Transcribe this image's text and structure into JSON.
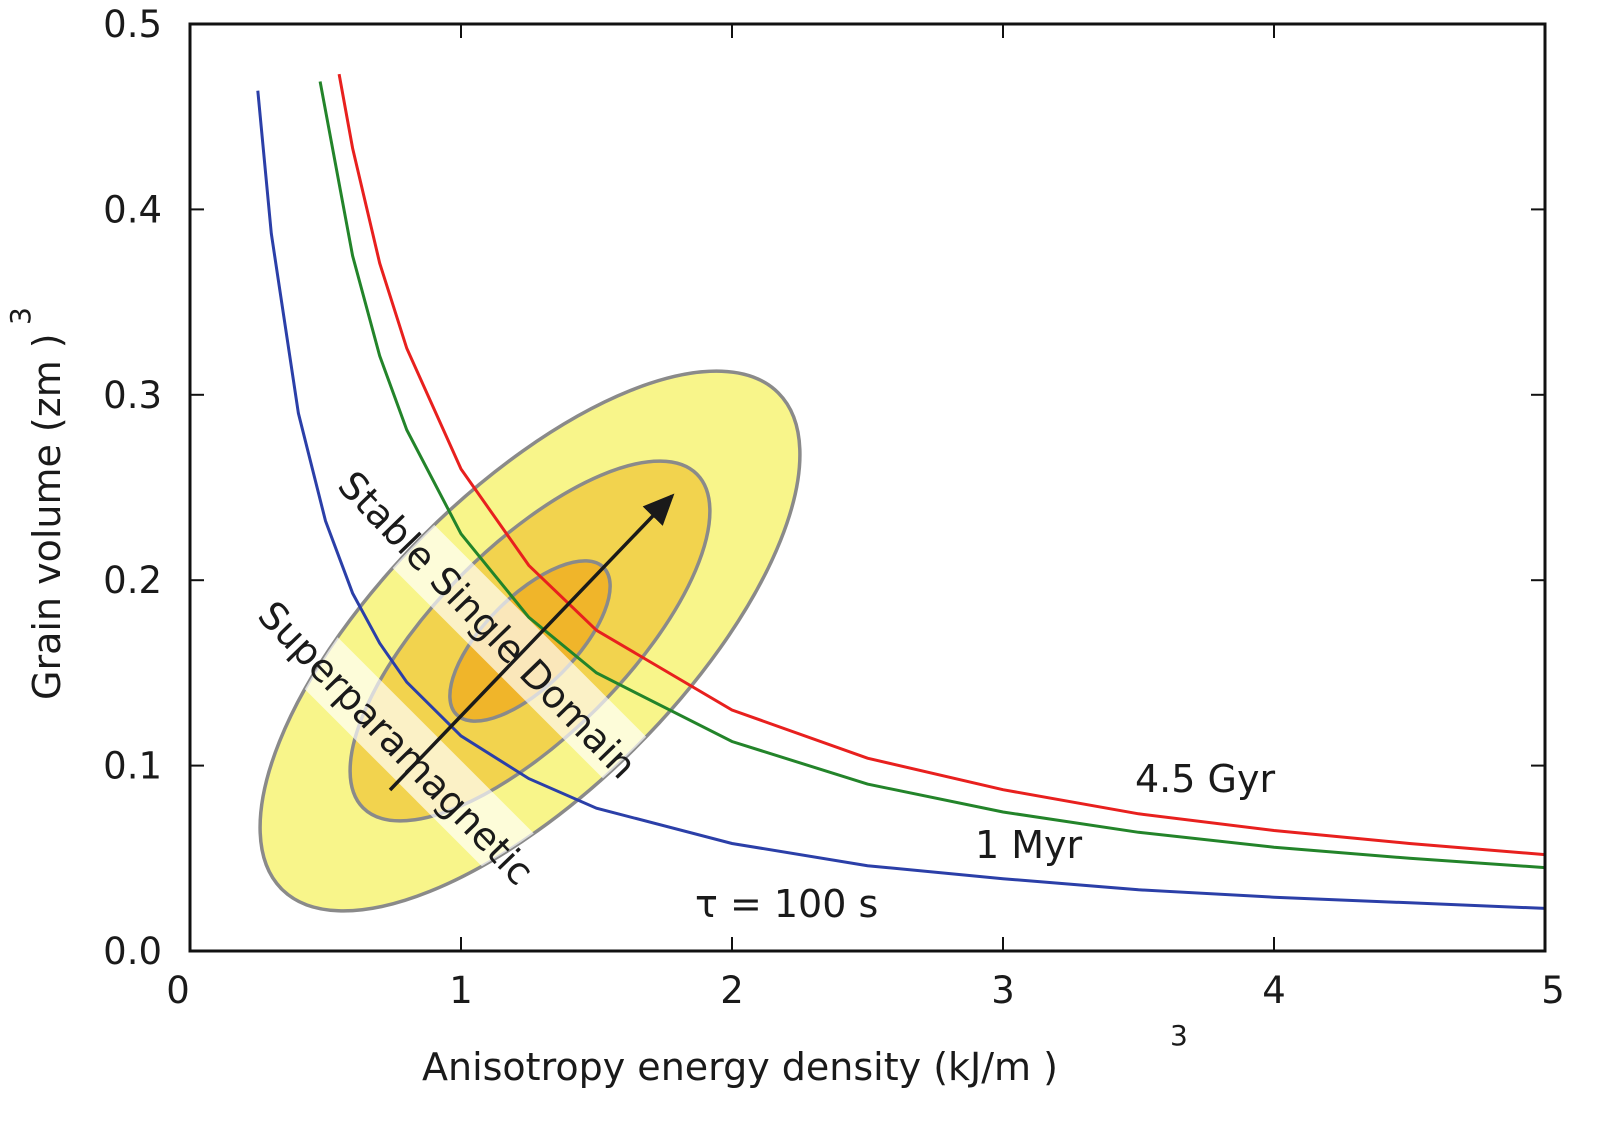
{
  "chart_data": {
    "type": "line",
    "title": "",
    "xlabel_main": "Anisotropy energy density (kJ/m  )",
    "xlabel_sup": "3",
    "ylabel_main": "Grain volume (zm  )",
    "ylabel_sup": "3",
    "xlim": [
      0,
      5
    ],
    "ylim": [
      0,
      0.5
    ],
    "xticks": [
      "0",
      "1",
      "2",
      "3",
      "4",
      "5"
    ],
    "yticks": [
      "0.0",
      "0.1",
      "0.2",
      "0.3",
      "0.4",
      "0.5"
    ],
    "grid": false,
    "series": [
      {
        "name": "τ = 100 s",
        "color": "#2b3fa8",
        "x": [
          0.25,
          0.3,
          0.4,
          0.5,
          0.6,
          0.7,
          0.8,
          1,
          1.25,
          1.5,
          2,
          2.5,
          3,
          3.5,
          4,
          4.5,
          5
        ],
        "y": [
          0.464,
          0.387,
          0.29,
          0.232,
          0.193,
          0.166,
          0.145,
          0.116,
          0.093,
          0.077,
          0.058,
          0.046,
          0.039,
          0.033,
          0.029,
          0.026,
          0.023
        ]
      },
      {
        "name": "1 Myr",
        "color": "#23842a",
        "x": [
          0.48,
          0.6,
          0.7,
          0.8,
          1,
          1.25,
          1.5,
          2,
          2.5,
          3,
          3.5,
          4,
          4.5,
          5
        ],
        "y": [
          0.469,
          0.375,
          0.321,
          0.281,
          0.225,
          0.18,
          0.15,
          0.113,
          0.09,
          0.075,
          0.064,
          0.056,
          0.05,
          0.045
        ]
      },
      {
        "name": "4.5 Gyr",
        "color": "#e8201e",
        "x": [
          0.55,
          0.6,
          0.7,
          0.8,
          1,
          1.25,
          1.5,
          2,
          2.5,
          3,
          3.5,
          4,
          4.5,
          5
        ],
        "y": [
          0.473,
          0.433,
          0.371,
          0.325,
          0.26,
          0.208,
          0.173,
          0.13,
          0.104,
          0.087,
          0.074,
          0.065,
          0.058,
          0.052
        ]
      }
    ],
    "annotations": {
      "region_ssd": "Stable Single Domain",
      "region_spm": "Superparamagnetic",
      "label_gyr": "4.5 Gyr",
      "label_myr": "1 Myr",
      "label_tau": "τ = 100 s"
    },
    "distribution_colors": [
      "#f8f58a",
      "#f2d34e",
      "#f0b52a"
    ],
    "outline_color": "#8a8a8a"
  }
}
